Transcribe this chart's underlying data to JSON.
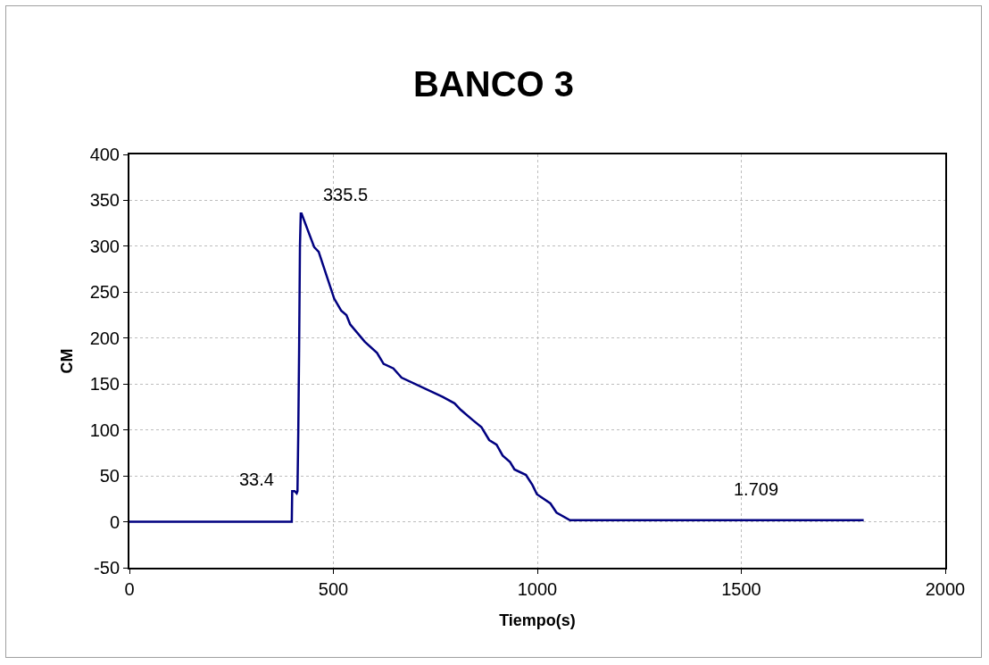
{
  "chart_data": {
    "type": "line",
    "title": "BANCO 3",
    "xlabel": "Tiempo(s)",
    "ylabel": "CM",
    "x": [
      0,
      100,
      200,
      300,
      398,
      399,
      405,
      410,
      412,
      414,
      416,
      418,
      420,
      422,
      453,
      464,
      502,
      519,
      532,
      541,
      577,
      607,
      623,
      647,
      667,
      768,
      797,
      812,
      841,
      863,
      882,
      900,
      915,
      933,
      944,
      972,
      988,
      999,
      1032,
      1047,
      1080,
      1200,
      1400,
      1600,
      1800
    ],
    "series": [
      {
        "color": "#000080",
        "values": [
          0,
          0,
          0,
          0,
          0,
          33.4,
          33.4,
          31,
          33.4,
          100,
          187,
          300,
          335.5,
          335.5,
          299,
          294,
          243,
          230,
          225,
          215,
          196,
          184,
          172,
          167,
          157,
          136,
          129,
          122,
          111,
          103,
          89,
          84,
          72,
          65,
          57,
          51,
          40,
          30,
          20,
          10,
          1.709,
          1.709,
          1.709,
          1.709,
          1.709
        ]
      }
    ],
    "xlim": [
      0,
      2000
    ],
    "xticks": [
      0,
      500,
      1000,
      1500,
      2000
    ],
    "ylim": [
      -50,
      400
    ],
    "yticks": [
      -50,
      0,
      50,
      100,
      150,
      200,
      250,
      300,
      350,
      400
    ],
    "grid": true,
    "marker": "none",
    "line_style": "solid",
    "annotations": [
      {
        "text": "335.5",
        "x": 420,
        "y": 335.5
      },
      {
        "text": "33.4",
        "x": 399,
        "y": 33.4
      },
      {
        "text": "1.709",
        "x": 1476,
        "y": 1.709
      }
    ]
  }
}
